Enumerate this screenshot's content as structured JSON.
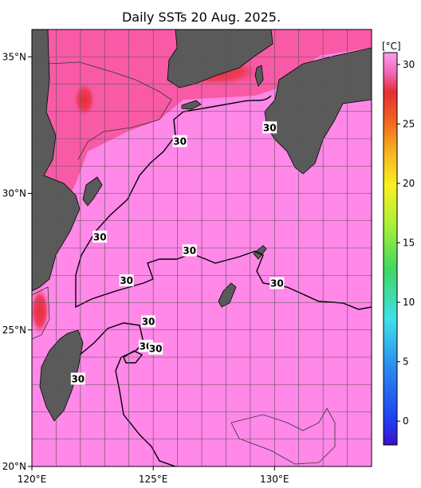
{
  "title": "Daily SSTs 20 Aug. 2025.",
  "map": {
    "lon_range": [
      120,
      134
    ],
    "lat_range": [
      20,
      36
    ],
    "lon_ticks": [
      {
        "value": 120,
        "label": "120°E"
      },
      {
        "value": 125,
        "label": "125°E"
      },
      {
        "value": 130,
        "label": "130°E"
      }
    ],
    "lat_ticks": [
      {
        "value": 35,
        "label": "35°N"
      },
      {
        "value": 30,
        "label": "30°N"
      },
      {
        "value": 25,
        "label": "25°N"
      },
      {
        "value": 20,
        "label": "20°N"
      }
    ],
    "contour_labels": [
      {
        "text": "30",
        "lon": 126.1,
        "lat": 31.9
      },
      {
        "text": "30",
        "lon": 129.8,
        "lat": 32.4
      },
      {
        "text": "30",
        "lon": 122.8,
        "lat": 28.4
      },
      {
        "text": "30",
        "lon": 126.5,
        "lat": 27.9
      },
      {
        "text": "30",
        "lon": 123.9,
        "lat": 26.8
      },
      {
        "text": "30",
        "lon": 130.1,
        "lat": 26.7
      },
      {
        "text": "30",
        "lon": 124.8,
        "lat": 25.3
      },
      {
        "text": "30",
        "lon": 124.7,
        "lat": 24.4
      },
      {
        "text": "30",
        "lon": 125.1,
        "lat": 24.3
      },
      {
        "text": "30",
        "lon": 121.9,
        "lat": 23.2
      }
    ],
    "colors": {
      "sea_base": "#ff88e8",
      "warm_band": "#f85aa6",
      "hot": "#e62d38",
      "land": "#5a5a5a",
      "coast": "#000000",
      "grid": "#555555"
    }
  },
  "colorbar": {
    "unit": "[°C]",
    "range": [
      -2,
      31
    ],
    "ticks": [
      "30",
      "25",
      "20",
      "15",
      "10",
      "5",
      "0"
    ],
    "tick_values": [
      30,
      25,
      20,
      15,
      10,
      5,
      0
    ]
  }
}
